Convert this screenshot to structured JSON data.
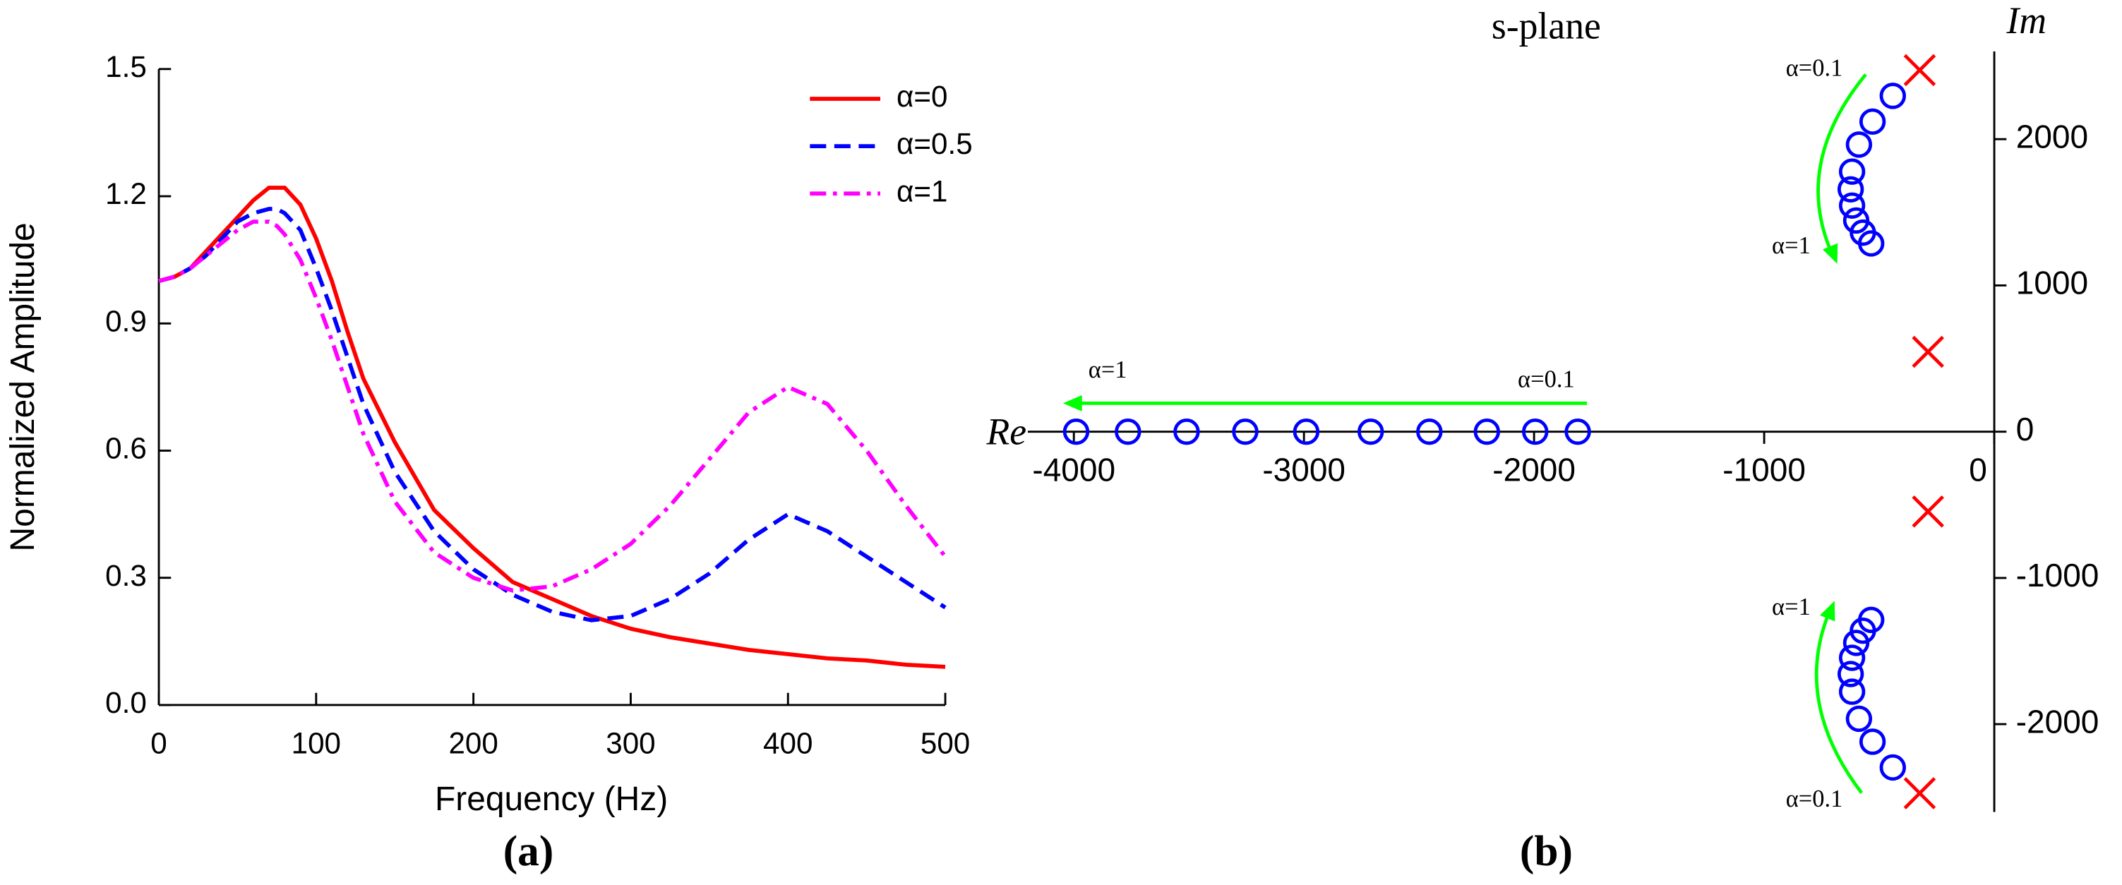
{
  "chart_data": [
    {
      "type": "line",
      "label": "(a)",
      "x_label": "Frequency (Hz)",
      "y_label": "Normalized Amplitude",
      "x": [
        0,
        10,
        20,
        30,
        40,
        50,
        60,
        70,
        75,
        80,
        90,
        100,
        110,
        120,
        130,
        150,
        175,
        200,
        225,
        250,
        275,
        300,
        325,
        350,
        375,
        400,
        425,
        450,
        475,
        500
      ],
      "series": [
        {
          "name": "α=0",
          "color": "#ff0000",
          "dash": "solid",
          "values": [
            1.0,
            1.01,
            1.03,
            1.07,
            1.11,
            1.15,
            1.19,
            1.22,
            1.22,
            1.22,
            1.18,
            1.1,
            1.0,
            0.88,
            0.77,
            0.62,
            0.46,
            0.37,
            0.29,
            0.25,
            0.21,
            0.18,
            0.16,
            0.145,
            0.13,
            0.12,
            0.11,
            0.105,
            0.095,
            0.09
          ]
        },
        {
          "name": "α=0.5",
          "color": "#0000ff",
          "dash": "dash",
          "values": [
            1.0,
            1.01,
            1.03,
            1.06,
            1.1,
            1.14,
            1.16,
            1.17,
            1.17,
            1.16,
            1.12,
            1.03,
            0.93,
            0.82,
            0.71,
            0.55,
            0.41,
            0.32,
            0.26,
            0.22,
            0.2,
            0.21,
            0.25,
            0.31,
            0.39,
            0.45,
            0.41,
            0.35,
            0.29,
            0.23
          ]
        },
        {
          "name": "α=1",
          "color": "#ff00ff",
          "dash": "dashdot",
          "values": [
            1.0,
            1.01,
            1.03,
            1.06,
            1.09,
            1.12,
            1.14,
            1.14,
            1.13,
            1.11,
            1.05,
            0.96,
            0.86,
            0.75,
            0.64,
            0.48,
            0.36,
            0.3,
            0.27,
            0.28,
            0.32,
            0.38,
            0.47,
            0.58,
            0.69,
            0.75,
            0.71,
            0.6,
            0.47,
            0.35
          ]
        }
      ],
      "xlim": [
        0,
        500
      ],
      "xticks": [
        0,
        100,
        200,
        300,
        400,
        500
      ],
      "ylim": [
        0,
        1.5
      ],
      "yticks": [
        {
          "value": 0,
          "label": "0.0"
        },
        0.3,
        0.6,
        0.9,
        1.2,
        1.5
      ],
      "legend": "upper right"
    },
    {
      "type": "scatter",
      "title": "s-plane",
      "label": "(b)",
      "x_label": "Re",
      "y_label": "Im",
      "series": [
        {
          "marker": "circle",
          "color": "#0000ff",
          "x": [
            -3990,
            -3765,
            -3510,
            -3255,
            -2990,
            -2710,
            -2455,
            -2205,
            -1995,
            -1810,
            -441,
            -529,
            -588,
            -618,
            -624,
            -618,
            -600,
            -571,
            -535,
            -441,
            -529,
            -588,
            -618,
            -624,
            -618,
            -600,
            -571,
            -535
          ],
          "y": [
            0,
            0,
            0,
            0,
            0,
            0,
            0,
            0,
            0,
            0,
            2296,
            2120,
            1963,
            1778,
            1657,
            1546,
            1444,
            1361,
            1287,
            -2296,
            -2120,
            -1963,
            -1778,
            -1657,
            -1546,
            -1444,
            -1361,
            -1287
          ]
        },
        {
          "marker": "cross",
          "color": "#ff0000",
          "x": [
            -324,
            -288,
            -288,
            -324
          ],
          "y": [
            2472,
            546,
            -546,
            -2472
          ]
        }
      ],
      "annotations": [
        "α=0.1",
        "α=1",
        "α=1",
        "α=0.1",
        "α=1",
        "α=0.1"
      ],
      "annotation_color": "#00ff00",
      "xlim": [
        -4200,
        0
      ],
      "xticks": [
        -4000,
        -3000,
        -2000,
        -1000,
        0
      ],
      "ylim": [
        -2600,
        2600
      ],
      "yticks": [
        -2000,
        -1000,
        0,
        1000,
        2000
      ]
    }
  ]
}
